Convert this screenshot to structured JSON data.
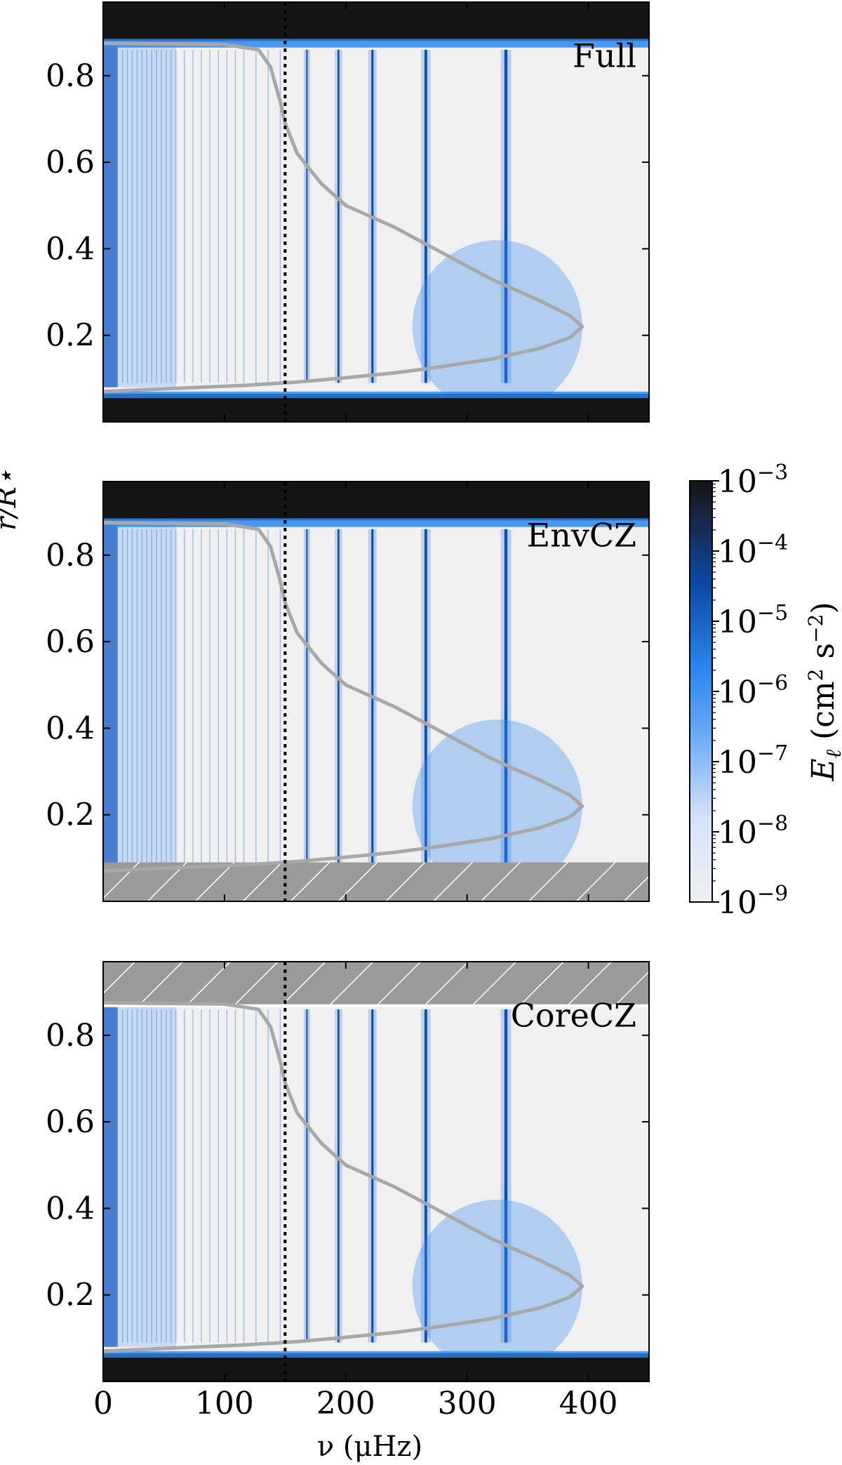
{
  "chart_data": {
    "type": "heatmap",
    "xlabel": "ν (μHz)",
    "ylabel": "r/R⋆",
    "xlim": [
      0,
      450
    ],
    "ylim": [
      0,
      0.97
    ],
    "x_ticks": [
      0,
      100,
      200,
      300,
      400
    ],
    "x_tick_labels": [
      "0",
      "100",
      "200",
      "300",
      "400"
    ],
    "y_ticks": [
      0.2,
      0.4,
      0.6,
      0.8
    ],
    "y_tick_labels": [
      "0.2",
      "0.4",
      "0.6",
      "0.8"
    ],
    "dotted_line_x": 150,
    "colorbar": {
      "label": "E_ℓ (cm² s⁻²)",
      "label_parts": {
        "base": "E",
        "sub": "ℓ",
        "unit_open": " (cm",
        "sq": "2",
        "unit_mid": " s",
        "sq2": "−2",
        "unit_close": ")"
      },
      "scale": "log",
      "range": [
        1e-09,
        0.001
      ],
      "tick_exponents": [
        "−3",
        "−4",
        "−5",
        "−6",
        "−7",
        "−8",
        "−9"
      ],
      "tick_base": "10",
      "colors": [
        "#f0f0f0",
        "#b8d0f5",
        "#2b87f0",
        "#0a3e90",
        "#141414"
      ]
    },
    "mode_frequencies": [
      168,
      194,
      222,
      266,
      332
    ],
    "boundary_curve": {
      "x": [
        0,
        100,
        128,
        138,
        146,
        150,
        160,
        180,
        200,
        240,
        280,
        320,
        360,
        385,
        395,
        385,
        360,
        320,
        280,
        240,
        200,
        160,
        120,
        80,
        40,
        0
      ],
      "y": [
        0.875,
        0.872,
        0.86,
        0.82,
        0.74,
        0.69,
        0.62,
        0.55,
        0.5,
        0.45,
        0.39,
        0.33,
        0.28,
        0.245,
        0.22,
        0.195,
        0.17,
        0.145,
        0.128,
        0.113,
        0.102,
        0.092,
        0.085,
        0.08,
        0.075,
        0.07
      ]
    },
    "panels": [
      {
        "label": "Full"
      },
      {
        "label": "EnvCZ",
        "excluded_region": "r/R⋆ < 0.09"
      },
      {
        "label": "CoreCZ",
        "excluded_region": "r/R⋆ > 0.86"
      }
    ]
  }
}
